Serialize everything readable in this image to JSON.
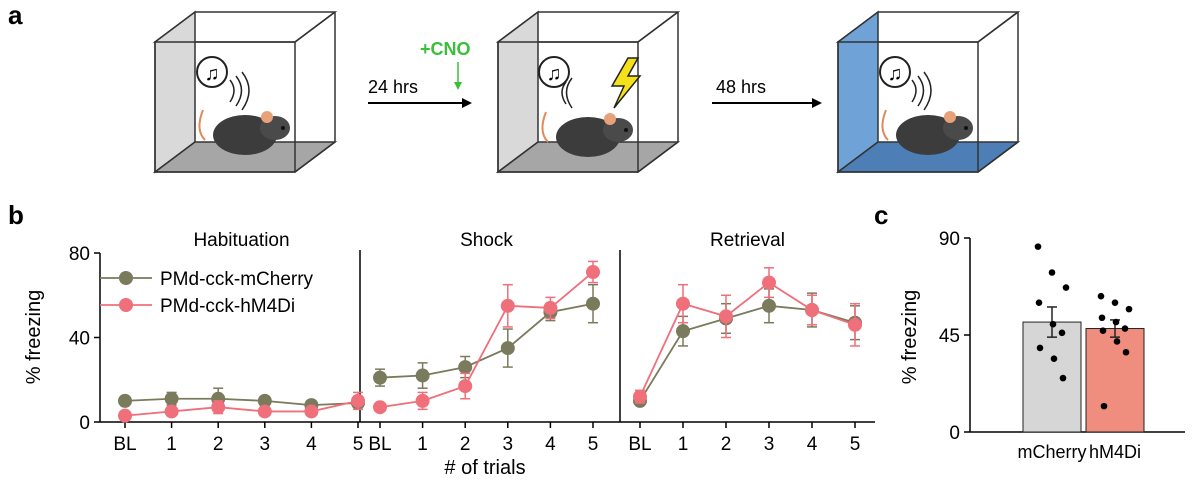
{
  "panel_labels": {
    "a": "a",
    "b": "b",
    "c": "c"
  },
  "panel_a": {
    "interval_1": "24 hrs",
    "interval_2": "48 hrs",
    "drug": "+CNO"
  },
  "chart_data": [
    {
      "type": "line",
      "panel": "b",
      "ylabel": "% freezing",
      "xlabel": "# of trials",
      "ylim": [
        0,
        80
      ],
      "yticks": [
        0,
        40,
        80
      ],
      "x_tick_labels": [
        "BL",
        "1",
        "2",
        "3",
        "4",
        "5"
      ],
      "legend_placement": "top-left of first subpanel",
      "subplots": [
        {
          "title": "Habituation",
          "series": [
            {
              "name": "PMd-cck-mCherry",
              "color": "#7a7a5c",
              "values": [
                10,
                11,
                11,
                10,
                8,
                9
              ],
              "errors": [
                2,
                3,
                5,
                2,
                2,
                3
              ]
            },
            {
              "name": "PMd-cck-hM4Di",
              "color": "#ef6f7a",
              "values": [
                3,
                5,
                7,
                5,
                5,
                10
              ],
              "errors": [
                1,
                2,
                3,
                2,
                2,
                4
              ]
            }
          ]
        },
        {
          "title": "Shock",
          "series": [
            {
              "name": "PMd-cck-mCherry",
              "color": "#7a7a5c",
              "values": [
                21,
                22,
                26,
                35,
                52,
                56
              ],
              "errors": [
                4,
                6,
                5,
                9,
                4,
                9
              ]
            },
            {
              "name": "PMd-cck-hM4Di",
              "color": "#ef6f7a",
              "values": [
                7,
                10,
                17,
                55,
                54,
                71
              ],
              "errors": [
                2,
                4,
                6,
                10,
                5,
                5
              ]
            }
          ]
        },
        {
          "title": "Retrieval",
          "series": [
            {
              "name": "PMd-cck-mCherry",
              "color": "#7a7a5c",
              "values": [
                10,
                43,
                49,
                55,
                53,
                47
              ],
              "errors": [
                2,
                7,
                7,
                8,
                8,
                8
              ]
            },
            {
              "name": "PMd-cck-hM4Di",
              "color": "#ef6f7a",
              "values": [
                12,
                56,
                50,
                66,
                53,
                46
              ],
              "errors": [
                3,
                9,
                10,
                7,
                7,
                10
              ]
            }
          ]
        }
      ]
    },
    {
      "type": "bar",
      "panel": "c",
      "ylabel": "% freezing",
      "ylim": [
        0,
        90
      ],
      "yticks": [
        0,
        45,
        90
      ],
      "categories": [
        "mCherry",
        "hM4Di"
      ],
      "values": [
        51,
        48
      ],
      "errors": [
        7,
        4
      ],
      "colors": [
        "#d6d6d6",
        "#ef8e7e"
      ],
      "points": [
        [
          86,
          74,
          67,
          60,
          50,
          46,
          39,
          34,
          25
        ],
        [
          63,
          60,
          57,
          53,
          51,
          48,
          47,
          42,
          37,
          12
        ]
      ]
    }
  ]
}
